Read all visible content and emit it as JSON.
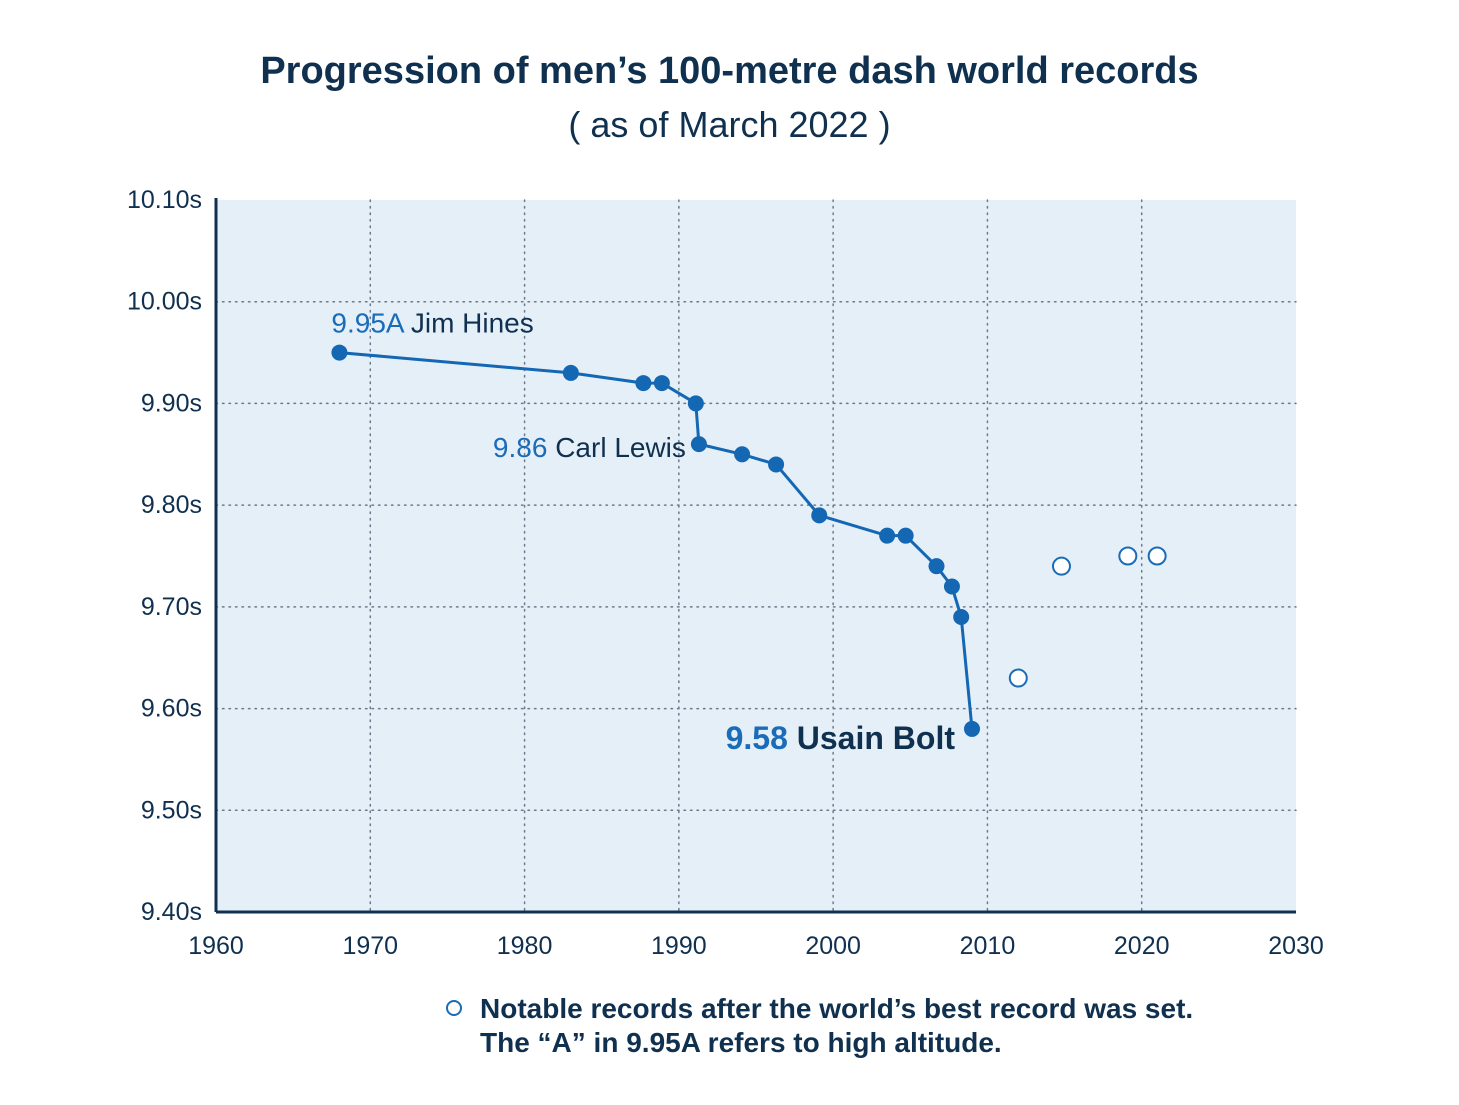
{
  "title": "Progression of men’s 100-metre dash world records",
  "subtitle": "( as of March 2022 )",
  "chart_data": {
    "type": "line",
    "colors": {
      "series": "#1467b3",
      "background": "#e5eff8",
      "text": "#10304f",
      "accent": "#1a6bb8"
    },
    "xlim": [
      1960,
      2030
    ],
    "ylim": [
      9.4,
      10.1
    ],
    "x_ticks": [
      "1960",
      "1970",
      "1980",
      "1990",
      "2000",
      "2010",
      "2020",
      "2030"
    ],
    "y_ticks": [
      "10.10s",
      "10.00s",
      "9.90s",
      "9.80s",
      "9.70s",
      "9.60s",
      "9.50s",
      "9.40s"
    ],
    "grid": true,
    "grid_style": "dotted",
    "series": [
      {
        "marker": "filled-circle",
        "points": [
          {
            "x": 1968,
            "y": 9.95
          },
          {
            "x": 1983,
            "y": 9.93
          },
          {
            "x": 1987.7,
            "y": 9.92
          },
          {
            "x": 1988.9,
            "y": 9.92
          },
          {
            "x": 1991.1,
            "y": 9.9
          },
          {
            "x": 1991.3,
            "y": 9.86
          },
          {
            "x": 1994.1,
            "y": 9.85
          },
          {
            "x": 1996.3,
            "y": 9.84
          },
          {
            "x": 1999.1,
            "y": 9.79
          },
          {
            "x": 2003.5,
            "y": 9.77
          },
          {
            "x": 2004.7,
            "y": 9.77
          },
          {
            "x": 2006.7,
            "y": 9.74
          },
          {
            "x": 2007.7,
            "y": 9.72
          },
          {
            "x": 2008.3,
            "y": 9.69
          },
          {
            "x": 2009,
            "y": 9.58
          }
        ]
      },
      {
        "marker": "open-circle",
        "points": [
          {
            "x": 2012,
            "y": 9.63
          },
          {
            "x": 2014.8,
            "y": 9.74
          },
          {
            "x": 2019.1,
            "y": 9.75
          },
          {
            "x": 2021,
            "y": 9.75
          }
        ]
      }
    ],
    "annotations": [
      {
        "value": "9.95A",
        "name": "Jim Hines",
        "x": 1968,
        "y": 9.95,
        "bold": false
      },
      {
        "value": "9.86",
        "name": "Carl Lewis",
        "x": 1991.3,
        "y": 9.86,
        "bold": false
      },
      {
        "value": "9.58",
        "name": "Usain Bolt",
        "x": 2009,
        "y": 9.58,
        "bold": true
      }
    ],
    "legend": {
      "line1": "Notable records after the world’s best record was set.",
      "line2": "The “A” in 9.95A refers to high altitude."
    }
  }
}
